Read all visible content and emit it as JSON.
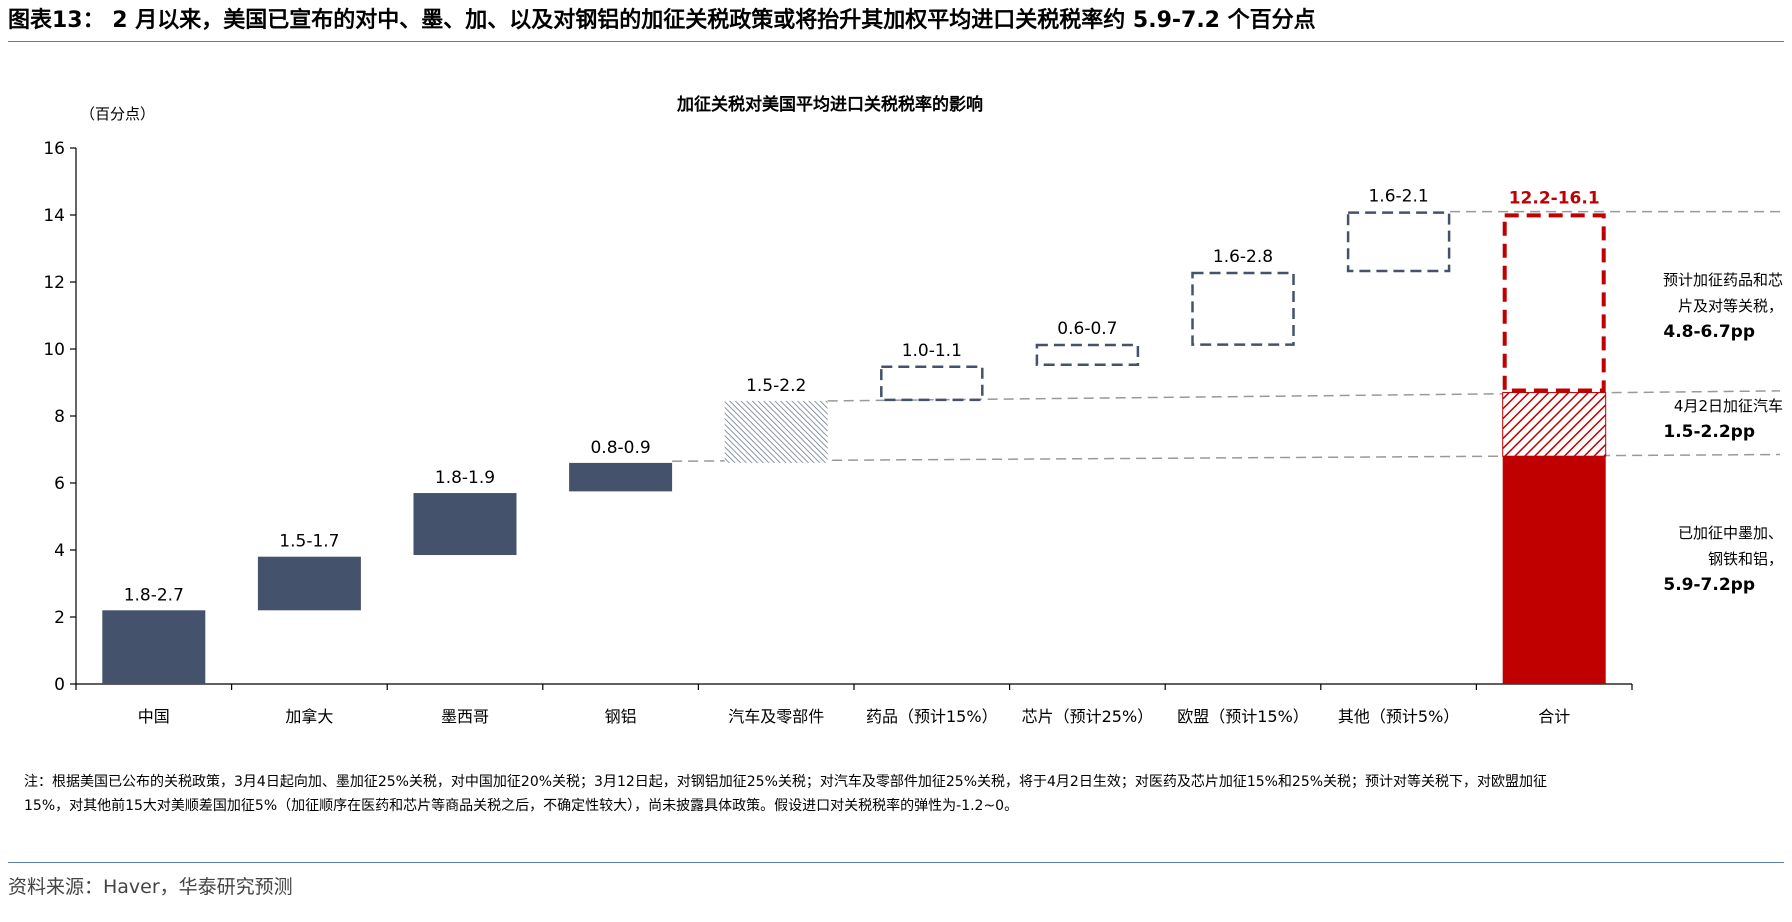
{
  "header": {
    "title": "图表13： 2 月以来，美国已宣布的对中、墨、加、以及对钢铝的加征关税政策或将抬升其加权平均进口关税税率约 5.9-7.2 个百分点"
  },
  "chart_data": {
    "type": "bar",
    "subtype": "waterfall",
    "title": "加征关税对美国平均进口关税税率的影响",
    "unit_label": "（百分点）",
    "ylim": [
      0,
      16
    ],
    "yticks": [
      0,
      2,
      4,
      6,
      8,
      10,
      12,
      14,
      16
    ],
    "categories": [
      "中国",
      "加拿大",
      "墨西哥",
      "钢铝",
      "汽车及零部件",
      "药品（预计15%）",
      "芯片（预计25%）",
      "欧盟（预计15%）",
      "其他（预计5%）",
      "合计"
    ],
    "bars": [
      {
        "label": "1.8-2.7",
        "low": 0,
        "high": 2.2,
        "style": "solid"
      },
      {
        "label": "1.5-1.7",
        "low": 2.2,
        "high": 3.8,
        "style": "solid"
      },
      {
        "label": "1.8-1.9",
        "low": 3.85,
        "high": 5.7,
        "style": "solid"
      },
      {
        "label": "0.8-0.9",
        "low": 5.75,
        "high": 6.6,
        "style": "solid"
      },
      {
        "label": "1.5-2.2",
        "low": 6.6,
        "high": 8.45,
        "style": "hatched"
      },
      {
        "label": "1.0-1.1",
        "low": 8.45,
        "high": 9.5,
        "style": "dashed"
      },
      {
        "label": "0.6-0.7",
        "low": 9.5,
        "high": 10.15,
        "style": "dashed"
      },
      {
        "label": "1.6-2.8",
        "low": 10.1,
        "high": 12.3,
        "style": "dashed"
      },
      {
        "label": "1.6-2.1",
        "low": 12.3,
        "high": 14.1,
        "style": "dashed"
      },
      {
        "label": "12.2-16.1",
        "segments": [
          {
            "low": 0,
            "high": 6.8,
            "style": "red-solid"
          },
          {
            "low": 6.8,
            "high": 8.7,
            "style": "red-hatched"
          },
          {
            "low": 8.7,
            "high": 14.05,
            "style": "red-dashed"
          }
        ]
      }
    ],
    "reference_lines": [
      6.65,
      8.45,
      14.1
    ],
    "annotations": [
      {
        "lines": [
          "预计加征药品和芯",
          "片及对等关税，"
        ],
        "value": "4.8-6.7pp"
      },
      {
        "lines": [
          "4月2日加征汽车"
        ],
        "value": "1.5-2.2pp"
      },
      {
        "lines": [
          "已加征中墨加、",
          "钢铁和铝，"
        ],
        "value": "5.9-7.2pp"
      }
    ],
    "colors": {
      "bar": "#44536b",
      "dashed": "#44536b",
      "total": "#c00000",
      "ref_line": "#999999"
    }
  },
  "note": "注：根据美国已公布的关税政策，3月4日起向加、墨加征25%关税，对中国加征20%关税；3月12日起，对钢铝加征25%关税；对汽车及零部件加征25%关税，将于4月2日生效；对医药及芯片加征15%和25%关税；预计对等关税下，对欧盟加征15%，对其他前15大对美顺差国加征5%（加征顺序在医药和芯片等商品关税之后，不确定性较大），尚未披露具体政策。假设进口对关税税率的弹性为-1.2~0。",
  "source": "资料来源：Haver，华泰研究预测"
}
